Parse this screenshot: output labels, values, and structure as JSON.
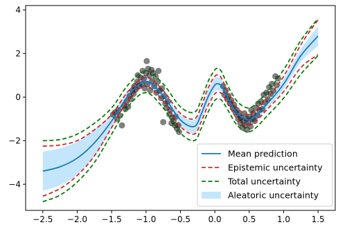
{
  "chart_data": {
    "type": "line",
    "title": "",
    "xlabel": "",
    "ylabel": "",
    "xlim": [
      -2.75,
      1.75
    ],
    "ylim": [
      -5.2,
      4.2
    ],
    "xticks": [
      -2.5,
      -2.0,
      -1.5,
      -1.0,
      -0.5,
      0.0,
      0.5,
      1.0,
      1.5
    ],
    "xtick_labels": [
      "−2.5",
      "−2.0",
      "−1.5",
      "−1.0",
      "−0.5",
      "0.0",
      "0.5",
      "1.0",
      "1.5"
    ],
    "yticks": [
      -4,
      -2,
      0,
      2,
      4
    ],
    "ytick_labels": [
      "−4",
      "−2",
      "0",
      "2",
      "4"
    ],
    "grid": false,
    "legend_position": "bottom-right",
    "x": [
      -2.5,
      -2.25,
      -2.0,
      -1.75,
      -1.5,
      -1.25,
      -1.0,
      -0.75,
      -0.5,
      -0.3,
      -0.2,
      -0.1,
      0.0,
      0.05,
      0.1,
      0.2,
      0.3,
      0.4,
      0.5,
      0.6,
      0.75,
      1.0,
      1.25,
      1.5
    ],
    "series": [
      {
        "name": "Mean prediction",
        "kind": "line",
        "color": "#1f77b4",
        "values": [
          -3.4,
          -3.2,
          -2.8,
          -2.1,
          -1.1,
          0.1,
          0.7,
          0.05,
          -1.05,
          -1.35,
          -0.8,
          0.0,
          0.55,
          0.6,
          0.5,
          -0.1,
          -0.65,
          -0.95,
          -1.05,
          -0.85,
          -0.35,
          0.6,
          1.9,
          2.8
        ]
      },
      {
        "name": "Epistemic uncertainty",
        "kind": "dashed-band",
        "color": "#d62728",
        "upper": [
          -2.25,
          -2.2,
          -2.0,
          -1.5,
          -0.8,
          0.3,
          0.9,
          0.3,
          -0.75,
          -1.0,
          -0.45,
          0.4,
          0.95,
          1.0,
          0.85,
          0.15,
          -0.4,
          -0.7,
          -0.8,
          -0.6,
          -0.1,
          0.95,
          2.4,
          3.55
        ],
        "lower": [
          -4.55,
          -4.2,
          -3.6,
          -2.7,
          -1.4,
          -0.1,
          0.5,
          -0.2,
          -1.35,
          -1.7,
          -1.15,
          -0.4,
          0.15,
          0.2,
          0.15,
          -0.35,
          -0.9,
          -1.2,
          -1.3,
          -1.1,
          -0.6,
          0.25,
          1.35,
          1.95
        ]
      },
      {
        "name": "Total uncertainty",
        "kind": "dashed-band",
        "color": "#008000",
        "upper": [
          -2.0,
          -1.95,
          -1.7,
          -1.2,
          -0.5,
          0.6,
          1.2,
          0.6,
          -0.45,
          -0.7,
          -0.15,
          0.7,
          1.25,
          1.3,
          1.15,
          0.45,
          -0.1,
          -0.4,
          -0.5,
          -0.3,
          0.2,
          1.25,
          2.6,
          3.6
        ],
        "lower": [
          -4.8,
          -4.5,
          -3.9,
          -3.0,
          -1.7,
          -0.4,
          0.2,
          -0.5,
          -1.65,
          -2.0,
          -1.45,
          -0.7,
          -0.15,
          -0.1,
          -0.15,
          -0.65,
          -1.2,
          -1.5,
          -1.6,
          -1.4,
          -0.9,
          -0.05,
          1.05,
          1.9
        ]
      },
      {
        "name": "Aleatoric uncertainty",
        "kind": "filled-band",
        "color": "#87cefa",
        "upper": [
          -2.5,
          -2.35,
          -2.05,
          -1.5,
          -0.75,
          0.35,
          0.95,
          0.3,
          -0.8,
          -1.05,
          -0.5,
          0.3,
          0.85,
          0.9,
          0.8,
          0.1,
          -0.45,
          -0.75,
          -0.85,
          -0.65,
          -0.15,
          0.85,
          2.2,
          3.25
        ],
        "lower": [
          -4.3,
          -4.05,
          -3.55,
          -2.7,
          -1.45,
          -0.15,
          0.45,
          -0.2,
          -1.3,
          -1.65,
          -1.1,
          -0.3,
          0.25,
          0.3,
          0.2,
          -0.3,
          -0.85,
          -1.15,
          -1.25,
          -1.05,
          -0.55,
          0.35,
          1.6,
          2.35
        ]
      },
      {
        "name": "",
        "kind": "scatter",
        "color": "#222222",
        "points": [
          [
            -1.48,
            -0.8
          ],
          [
            -1.45,
            -0.7
          ],
          [
            -1.42,
            -1.0
          ],
          [
            -1.4,
            -0.6
          ],
          [
            -1.38,
            -0.85
          ],
          [
            -1.35,
            -1.3
          ],
          [
            -1.32,
            -0.4
          ],
          [
            -1.3,
            -0.55
          ],
          [
            -1.28,
            -0.2
          ],
          [
            -1.26,
            -0.45
          ],
          [
            -1.24,
            0.05
          ],
          [
            -1.22,
            -0.1
          ],
          [
            -1.2,
            0.3
          ],
          [
            -1.18,
            0.15
          ],
          [
            -1.17,
            0.5
          ],
          [
            -1.15,
            0.35
          ],
          [
            -1.13,
            0.7
          ],
          [
            -1.12,
            1.0
          ],
          [
            -1.1,
            0.5
          ],
          [
            -1.08,
            0.9
          ],
          [
            -1.06,
            0.6
          ],
          [
            -1.05,
            1.2
          ],
          [
            -1.03,
            0.85
          ],
          [
            -1.02,
            0.4
          ],
          [
            -1.0,
            1.1
          ],
          [
            -0.99,
            1.65
          ],
          [
            -0.98,
            0.6
          ],
          [
            -0.97,
            1.3
          ],
          [
            -0.95,
            1.0
          ],
          [
            -0.94,
            0.3
          ],
          [
            -0.92,
            1.25
          ],
          [
            -0.91,
            0.75
          ],
          [
            -0.9,
            1.1
          ],
          [
            -0.88,
            0.5
          ],
          [
            -0.86,
            0.95
          ],
          [
            -0.85,
            0.2
          ],
          [
            -0.83,
            0.7
          ],
          [
            -0.82,
            1.2
          ],
          [
            -0.8,
            0.3
          ],
          [
            -0.78,
            -0.05
          ],
          [
            -0.77,
            0.4
          ],
          [
            -0.75,
            -1.15
          ],
          [
            -0.73,
            0.05
          ],
          [
            -0.72,
            -0.3
          ],
          [
            -0.7,
            -0.5
          ],
          [
            -0.68,
            -0.2
          ],
          [
            -0.66,
            -0.8
          ],
          [
            -0.65,
            -0.6
          ],
          [
            -0.63,
            -1.2
          ],
          [
            -0.62,
            -0.95
          ],
          [
            -0.6,
            -1.1
          ],
          [
            -0.58,
            -1.3
          ],
          [
            -0.57,
            -0.9
          ],
          [
            -0.55,
            -1.45
          ],
          [
            -0.53,
            -1.3
          ],
          [
            -0.52,
            -1.6
          ],
          [
            0.12,
            0.5
          ],
          [
            0.14,
            0.1
          ],
          [
            0.16,
            0.3
          ],
          [
            0.18,
            -0.1
          ],
          [
            0.2,
            0.05
          ],
          [
            0.22,
            -0.3
          ],
          [
            0.24,
            -0.15
          ],
          [
            0.26,
            -0.5
          ],
          [
            0.28,
            -0.35
          ],
          [
            0.3,
            -0.7
          ],
          [
            0.32,
            -0.6
          ],
          [
            0.34,
            -1.0
          ],
          [
            0.35,
            -0.8
          ],
          [
            0.37,
            -1.2
          ],
          [
            0.38,
            -0.95
          ],
          [
            0.4,
            -1.4
          ],
          [
            0.41,
            -1.1
          ],
          [
            0.43,
            -0.75
          ],
          [
            0.44,
            -1.3
          ],
          [
            0.46,
            -1.0
          ],
          [
            0.47,
            -1.5
          ],
          [
            0.49,
            -1.15
          ],
          [
            0.5,
            -0.9
          ],
          [
            0.52,
            -1.35
          ],
          [
            0.53,
            -0.6
          ],
          [
            0.55,
            -1.0
          ],
          [
            0.56,
            -0.75
          ],
          [
            0.58,
            -1.1
          ],
          [
            0.6,
            -0.5
          ],
          [
            0.62,
            -0.85
          ],
          [
            0.63,
            -0.3
          ],
          [
            0.65,
            -0.6
          ],
          [
            0.67,
            -0.2
          ],
          [
            0.69,
            -0.55
          ],
          [
            0.71,
            0.1
          ],
          [
            0.73,
            -0.25
          ],
          [
            0.75,
            0.2
          ],
          [
            0.77,
            -0.1
          ],
          [
            0.79,
            0.45
          ],
          [
            0.81,
            0.15
          ],
          [
            0.83,
            0.6
          ],
          [
            0.85,
            0.3
          ],
          [
            0.88,
            0.95
          ],
          [
            0.9,
            0.55
          ],
          [
            0.92,
            0.85
          ]
        ]
      }
    ]
  }
}
